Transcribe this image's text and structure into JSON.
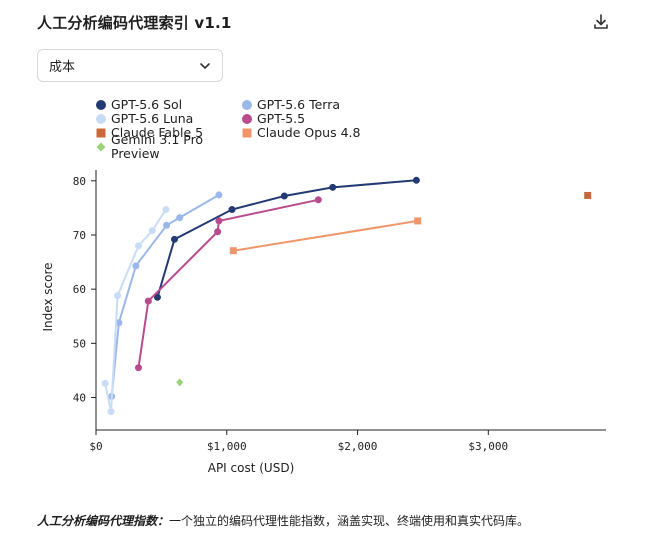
{
  "header": {
    "title": "人工分析编码代理索引 v1.1",
    "download_icon": "download-icon"
  },
  "selector": {
    "selected": "成本",
    "icon": "chevron-down-icon"
  },
  "footnote": {
    "bold": "人工分析编码代理指数：",
    "text": "一个独立的编码代理性能指数，涵盖实现、终端使用和真实代码库。"
  },
  "chart_data": {
    "type": "scatter",
    "xlabel": "API cost (USD)",
    "ylabel": "Index score",
    "xlim": [
      0,
      3900
    ],
    "ylim": [
      34,
      82
    ],
    "xticks": [
      0,
      1000,
      2000,
      3000
    ],
    "xtick_labels": [
      "$0",
      "$1,000",
      "$2,000",
      "$3,000"
    ],
    "yticks": [
      40,
      50,
      60,
      70,
      80
    ],
    "grid": false,
    "legend_position": "top-left",
    "series": [
      {
        "name": "GPT-5.6 Sol",
        "color": "#233a73",
        "marker": "circle",
        "connected": true,
        "x": [
          470,
          600,
          1040,
          1440,
          1810,
          2450
        ],
        "y": [
          58.5,
          69.2,
          74.7,
          77.2,
          78.8,
          80.1
        ]
      },
      {
        "name": "GPT-5.6 Terra",
        "color": "#9ab8e8",
        "marker": "circle",
        "connected": true,
        "x": [
          120,
          175,
          305,
          540,
          640,
          940
        ],
        "y": [
          40.2,
          53.8,
          64.3,
          71.8,
          73.2,
          77.4
        ]
      },
      {
        "name": "GPT-5.6 Luna",
        "color": "#c9dcf5",
        "marker": "circle",
        "connected": true,
        "x": [
          70,
          115,
          165,
          325,
          430,
          535
        ],
        "y": [
          42.6,
          37.4,
          58.8,
          68.0,
          70.8,
          74.7
        ]
      },
      {
        "name": "GPT-5.5",
        "color": "#b84b8f",
        "marker": "circle",
        "connected": true,
        "x": [
          325,
          400,
          930,
          940,
          1700
        ],
        "y": [
          45.5,
          57.8,
          70.6,
          72.6,
          76.5
        ]
      },
      {
        "name": "Claude Fable 5",
        "color": "#c8693a",
        "marker": "square",
        "connected": false,
        "x": [
          3760
        ],
        "y": [
          77.3
        ]
      },
      {
        "name": "Claude Opus 4.8",
        "color": "#f0966a",
        "marker": "square",
        "connected": true,
        "x": [
          1050,
          2460
        ],
        "y": [
          67.1,
          72.6
        ]
      },
      {
        "name": "Gemini 3.1 Pro Preview",
        "color": "#9bd37a",
        "marker": "diamond",
        "connected": false,
        "x": [
          640
        ],
        "y": [
          42.8
        ]
      }
    ]
  }
}
